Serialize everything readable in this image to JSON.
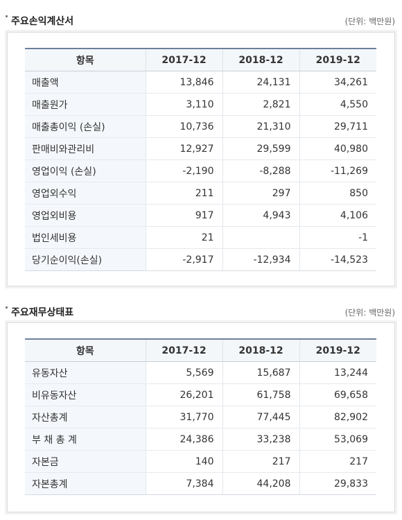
{
  "income": {
    "title": "주요손익계산서",
    "unit": "(단위: 백만원)",
    "header": [
      "항목",
      "2017-12",
      "2018-12",
      "2019-12"
    ],
    "rows": [
      {
        "label": "매출액",
        "values": [
          "13,846",
          "24,131",
          "34,261"
        ]
      },
      {
        "label": "매출원가",
        "values": [
          "3,110",
          "2,821",
          "4,550"
        ]
      },
      {
        "label": "매출총이익 (손실)",
        "values": [
          "10,736",
          "21,310",
          "29,711"
        ]
      },
      {
        "label": "판매비와관리비",
        "values": [
          "12,927",
          "29,599",
          "40,980"
        ]
      },
      {
        "label": "영업이익 (손실)",
        "values": [
          "-2,190",
          "-8,288",
          "-11,269"
        ]
      },
      {
        "label": "영업외수익",
        "values": [
          "211",
          "297",
          "850"
        ]
      },
      {
        "label": "영업외비용",
        "values": [
          "917",
          "4,943",
          "4,106"
        ]
      },
      {
        "label": "법인세비용",
        "values": [
          "21",
          "",
          "-1"
        ]
      },
      {
        "label": "당기순이익(손실)",
        "values": [
          "-2,917",
          "-12,934",
          "-14,523"
        ]
      }
    ]
  },
  "balance": {
    "title": "주요재무상태표",
    "unit": "(단위: 백만원)",
    "header": [
      "항목",
      "2017-12",
      "2018-12",
      "2019-12"
    ],
    "rows": [
      {
        "label": "유동자산",
        "values": [
          "5,569",
          "15,687",
          "13,244"
        ]
      },
      {
        "label": "비유동자산",
        "values": [
          "26,201",
          "61,758",
          "69,658"
        ]
      },
      {
        "label": "자산총계",
        "values": [
          "31,770",
          "77,445",
          "82,902"
        ]
      },
      {
        "label": "부 채 총 계",
        "values": [
          "24,386",
          "33,238",
          "53,069"
        ]
      },
      {
        "label": "자본금",
        "values": [
          "140",
          "217",
          "217"
        ]
      },
      {
        "label": "자본총계",
        "values": [
          "7,384",
          "44,208",
          "29,833"
        ]
      }
    ]
  }
}
